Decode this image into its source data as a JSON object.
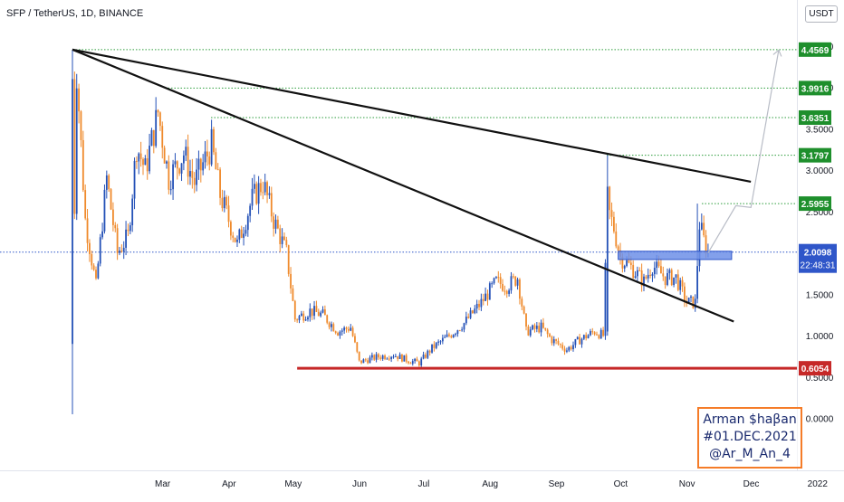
{
  "header": {
    "symbol_line": "SFP / TetherUS, 1D, BINANCE",
    "currency_button": "USDT"
  },
  "price_tag": {
    "price": "2.0098",
    "countdown": "22:48:31"
  },
  "level_tags": [
    {
      "text": "4.4569",
      "value": 4.4569,
      "color": "#1e8f2c"
    },
    {
      "text": "3.9916",
      "value": 3.9916,
      "color": "#1e8f2c"
    },
    {
      "text": "3.6351",
      "value": 3.6351,
      "color": "#1e8f2c"
    },
    {
      "text": "3.1797",
      "value": 3.1797,
      "color": "#1e8f2c"
    },
    {
      "text": "2.5955",
      "value": 2.5955,
      "color": "#1e8f2c"
    },
    {
      "text": "0.6054",
      "value": 0.6054,
      "color": "#c62828"
    }
  ],
  "signature": {
    "line1": "Arman $haβan",
    "line2": "#01.DEC.2021",
    "line3": "@Ar_M_An_4"
  },
  "colors": {
    "up": "#2451b7",
    "down": "#ef8a2c",
    "support": "#c62828",
    "level_line": "#2e9e3e",
    "trendline": "#111111",
    "zone": "#6d8fe8",
    "price_line": "#2f56c9"
  },
  "chart_data": {
    "type": "candlestick",
    "title": "SFP / TetherUS, 1D, BINANCE",
    "x_tick_labels": [
      "Mar",
      "Apr",
      "May",
      "Jun",
      "Jul",
      "Aug",
      "Sep",
      "Oct",
      "Nov",
      "Dec",
      "2022"
    ],
    "y_tick_labels": [
      "4.5000",
      "4.0000",
      "3.5000",
      "3.0000",
      "2.5000",
      "2.0000",
      "1.5000",
      "1.0000",
      "0.5000",
      "0.0000"
    ],
    "ylim": [
      -0.3,
      4.75
    ],
    "scale": "linear",
    "grid": false,
    "current_price": 2.0098,
    "horizontal_levels": [
      4.4569,
      3.9916,
      3.6351,
      3.1797,
      2.5955
    ],
    "support_level": 0.6054,
    "trendlines": [
      {
        "from": [
          "2021-02-08",
          4.4569
        ],
        "to": [
          "2021-12-22",
          2.86
        ]
      },
      {
        "from": [
          "2021-02-08",
          4.4569
        ],
        "to": [
          "2021-12-14",
          1.17
        ]
      }
    ],
    "demand_zone": {
      "from": "2021-10-21",
      "to": "2021-12-13",
      "low": 1.92,
      "high": 2.02
    },
    "projection_path": [
      [
        "2021-12-02",
        2.0
      ],
      [
        "2021-12-15",
        2.57
      ],
      [
        "2021-12-22",
        2.55
      ],
      [
        "2022-01-04",
        4.45
      ]
    ],
    "price_path": [
      [
        "2021-02-08",
        0.9
      ],
      [
        "2021-02-10",
        4.2
      ],
      [
        "2021-02-14",
        2.4
      ],
      [
        "2021-02-19",
        1.6
      ],
      [
        "2021-02-24",
        2.9
      ],
      [
        "2021-03-01",
        2.0
      ],
      [
        "2021-03-06",
        2.2
      ],
      [
        "2021-03-10",
        3.3
      ],
      [
        "2021-03-14",
        3.0
      ],
      [
        "2021-03-20",
        3.7
      ],
      [
        "2021-03-25",
        2.9
      ],
      [
        "2021-04-01",
        3.2
      ],
      [
        "2021-04-06",
        2.85
      ],
      [
        "2021-04-14",
        3.3
      ],
      [
        "2021-04-18",
        2.7
      ],
      [
        "2021-04-26",
        2.1
      ],
      [
        "2021-05-03",
        2.65
      ],
      [
        "2021-05-08",
        2.85
      ],
      [
        "2021-05-13",
        2.4
      ],
      [
        "2021-05-19",
        2.0
      ],
      [
        "2021-05-23",
        1.2
      ],
      [
        "2021-05-30",
        1.3
      ],
      [
        "2021-06-05",
        1.25
      ],
      [
        "2021-06-12",
        1.05
      ],
      [
        "2021-06-18",
        1.1
      ],
      [
        "2021-06-22",
        0.68
      ],
      [
        "2021-06-30",
        0.74
      ],
      [
        "2021-07-08",
        0.77
      ],
      [
        "2021-07-15",
        0.7
      ],
      [
        "2021-07-20",
        0.67
      ],
      [
        "2021-07-26",
        0.85
      ],
      [
        "2021-08-03",
        1.0
      ],
      [
        "2021-08-10",
        1.15
      ],
      [
        "2021-08-18",
        1.4
      ],
      [
        "2021-08-25",
        1.65
      ],
      [
        "2021-08-30",
        1.6
      ],
      [
        "2021-09-04",
        1.7
      ],
      [
        "2021-09-08",
        1.05
      ],
      [
        "2021-09-15",
        1.1
      ],
      [
        "2021-09-20",
        0.95
      ],
      [
        "2021-09-27",
        0.83
      ],
      [
        "2021-10-03",
        0.95
      ],
      [
        "2021-10-10",
        1.05
      ],
      [
        "2021-10-14",
        1.0
      ],
      [
        "2021-10-16",
        2.55
      ],
      [
        "2021-10-19",
        2.3
      ],
      [
        "2021-10-22",
        1.95
      ],
      [
        "2021-10-28",
        1.8
      ],
      [
        "2021-11-02",
        1.65
      ],
      [
        "2021-11-06",
        1.85
      ],
      [
        "2021-11-12",
        1.7
      ],
      [
        "2021-11-17",
        1.7
      ],
      [
        "2021-11-22",
        1.4
      ],
      [
        "2021-11-26",
        1.4
      ],
      [
        "2021-11-28",
        2.35
      ],
      [
        "2021-11-30",
        2.15
      ],
      [
        "2021-12-02",
        2.01
      ]
    ]
  }
}
